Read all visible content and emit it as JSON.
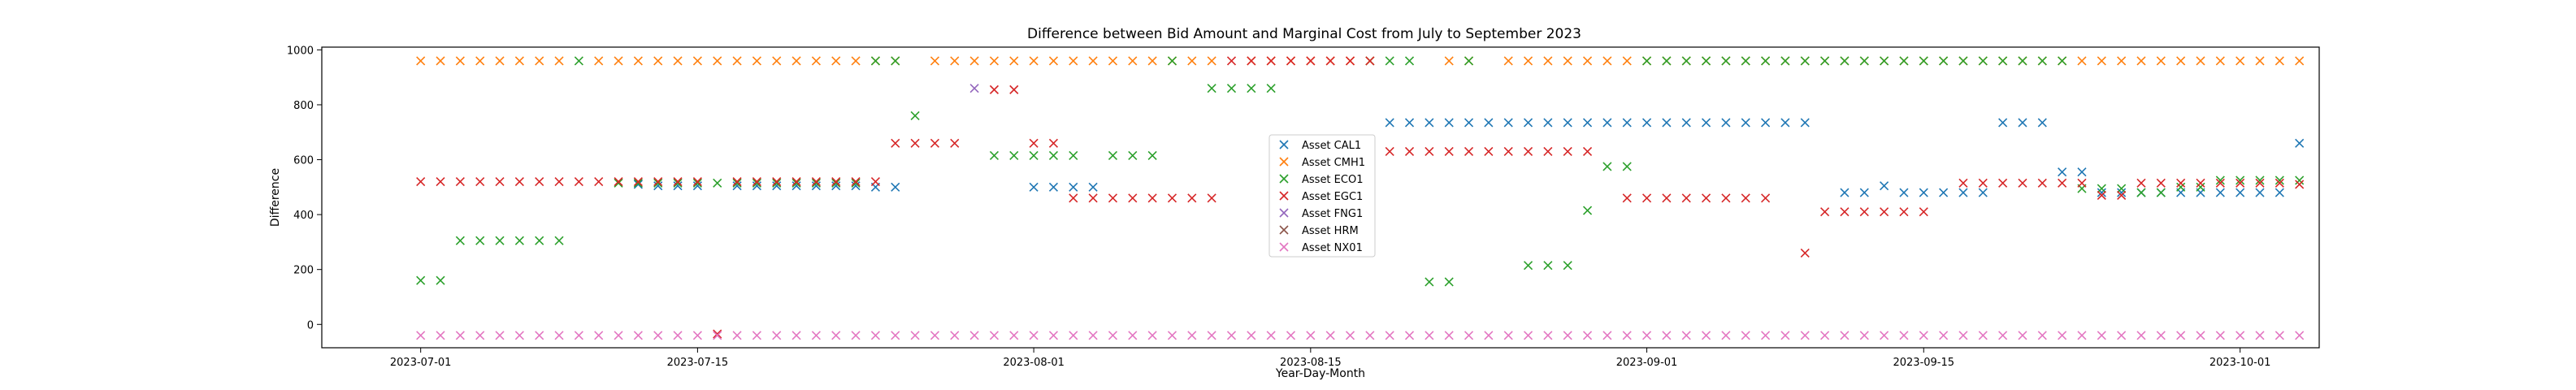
{
  "chart_data": {
    "type": "scatter",
    "title": "Difference between Bid Amount and Marginal Cost from July to September 2023",
    "xlabel": "Year-Day-Month",
    "ylabel": "Difference",
    "x_start": "2023-07-01",
    "x_end": "2023-09-30",
    "xlim": [
      "2023-06-26",
      "2023-10-05"
    ],
    "ylim": [
      -85,
      1010
    ],
    "xticks": [
      "2023-07-01",
      "2023-07-15",
      "2023-08-01",
      "2023-08-15",
      "2023-09-01",
      "2023-09-15",
      "2023-10-01"
    ],
    "yticks": [
      0,
      200,
      400,
      600,
      800,
      1000
    ],
    "marker": "x",
    "grid": false,
    "legend_position": "center",
    "series": [
      {
        "name": "Asset CAL1",
        "color": "#1f77b4",
        "values": [
          null,
          null,
          null,
          null,
          null,
          null,
          null,
          null,
          null,
          null,
          null,
          510,
          505,
          505,
          505,
          null,
          505,
          505,
          505,
          505,
          505,
          505,
          505,
          500,
          500,
          null,
          null,
          null,
          null,
          null,
          null,
          500,
          500,
          500,
          500,
          null,
          null,
          null,
          null,
          null,
          null,
          null,
          null,
          null,
          null,
          null,
          null,
          null,
          null,
          735,
          735,
          735,
          735,
          735,
          735,
          735,
          735,
          735,
          735,
          735,
          735,
          735,
          735,
          735,
          735,
          735,
          735,
          735,
          735,
          735,
          735,
          null,
          480,
          480,
          505,
          480,
          480,
          480,
          480,
          480,
          735,
          735,
          735,
          555,
          555,
          480,
          480,
          480,
          480,
          480,
          480,
          480,
          480,
          480,
          480,
          660
        ]
      },
      {
        "name": "Asset CMH1",
        "color": "#ff7f0e",
        "values": [
          960,
          960,
          960,
          960,
          960,
          960,
          960,
          960,
          null,
          960,
          960,
          960,
          960,
          960,
          960,
          960,
          960,
          960,
          960,
          960,
          960,
          960,
          960,
          960,
          960,
          null,
          960,
          960,
          960,
          960,
          960,
          960,
          960,
          960,
          960,
          960,
          960,
          960,
          960,
          960,
          960,
          null,
          960,
          960,
          960,
          960,
          960,
          960,
          960,
          null,
          null,
          null,
          960,
          960,
          null,
          960,
          960,
          960,
          960,
          960,
          960,
          960,
          960,
          960,
          960,
          960,
          960,
          960,
          960,
          960,
          960,
          960,
          960,
          960,
          960,
          960,
          960,
          960,
          960,
          960,
          960,
          960,
          960,
          960,
          960,
          960,
          960,
          960,
          960,
          960,
          960,
          960,
          960,
          960,
          960,
          960
        ]
      },
      {
        "name": "Asset ECO1",
        "color": "#2ca02c",
        "values": [
          160,
          160,
          305,
          305,
          305,
          305,
          305,
          305,
          960,
          null,
          515,
          515,
          515,
          515,
          515,
          515,
          515,
          515,
          515,
          515,
          515,
          515,
          515,
          960,
          960,
          760,
          null,
          null,
          null,
          615,
          615,
          615,
          615,
          615,
          null,
          615,
          615,
          615,
          960,
          null,
          860,
          860,
          860,
          860,
          null,
          null,
          null,
          null,
          960,
          960,
          960,
          155,
          155,
          960,
          null,
          null,
          215,
          215,
          215,
          415,
          575,
          575,
          960,
          960,
          960,
          960,
          960,
          960,
          960,
          960,
          960,
          960,
          960,
          960,
          960,
          960,
          960,
          960,
          960,
          960,
          960,
          960,
          960,
          960,
          495,
          495,
          495,
          480,
          480,
          500,
          500,
          525,
          525,
          525,
          525,
          525
        ]
      },
      {
        "name": "Asset EGC1",
        "color": "#d62728",
        "values": [
          520,
          520,
          520,
          520,
          520,
          520,
          520,
          520,
          520,
          520,
          520,
          520,
          520,
          520,
          520,
          -35,
          520,
          520,
          520,
          520,
          520,
          520,
          520,
          520,
          660,
          660,
          660,
          660,
          null,
          855,
          855,
          660,
          660,
          460,
          460,
          460,
          460,
          460,
          460,
          460,
          460,
          960,
          960,
          960,
          960,
          960,
          960,
          960,
          960,
          630,
          630,
          630,
          630,
          630,
          630,
          630,
          630,
          630,
          630,
          630,
          null,
          460,
          460,
          460,
          460,
          460,
          460,
          460,
          460,
          null,
          260,
          410,
          410,
          410,
          410,
          410,
          410,
          null,
          515,
          515,
          515,
          515,
          515,
          515,
          515,
          470,
          470,
          515,
          515,
          515,
          515,
          515,
          515,
          515,
          515,
          510
        ]
      },
      {
        "name": "Asset FNG1",
        "color": "#9467bd",
        "values": [
          null,
          null,
          null,
          null,
          null,
          null,
          null,
          null,
          null,
          null,
          null,
          null,
          null,
          null,
          null,
          null,
          null,
          null,
          null,
          null,
          null,
          null,
          null,
          null,
          null,
          null,
          null,
          null,
          860,
          null,
          null,
          null,
          null,
          null,
          null,
          null,
          null,
          null,
          null,
          null,
          null,
          null,
          null,
          null,
          null,
          null,
          null,
          null,
          null,
          null,
          null,
          null,
          null,
          null,
          null,
          null,
          null,
          null,
          null,
          null,
          null,
          null,
          null,
          null,
          null,
          null,
          null,
          null,
          null,
          null,
          null,
          null,
          null,
          null,
          null,
          null,
          null,
          null,
          null,
          null,
          null,
          null,
          null,
          null,
          null,
          null,
          null,
          null,
          null,
          null,
          null,
          null,
          null,
          null,
          null,
          null
        ]
      },
      {
        "name": "Asset HRM",
        "color": "#8c564b",
        "values": [
          null,
          null,
          null,
          null,
          null,
          null,
          null,
          null,
          null,
          null,
          null,
          null,
          null,
          null,
          null,
          null,
          null,
          null,
          null,
          null,
          null,
          null,
          null,
          null,
          null,
          null,
          null,
          null,
          null,
          null,
          null,
          null,
          null,
          null,
          null,
          null,
          null,
          null,
          null,
          null,
          null,
          null,
          null,
          null,
          null,
          null,
          null,
          null,
          null,
          null,
          null,
          null,
          null,
          null,
          null,
          null,
          null,
          null,
          null,
          null,
          null,
          null,
          null,
          null,
          null,
          null,
          null,
          null,
          null,
          null,
          null,
          null,
          null,
          null,
          null,
          null,
          null,
          null,
          null,
          null,
          null,
          null,
          null,
          null,
          null,
          null,
          null,
          null,
          null,
          null,
          null,
          null,
          null,
          null,
          null,
          null
        ]
      },
      {
        "name": "Asset NX01",
        "color": "#e377c2",
        "values": [
          -40,
          -40,
          -40,
          -40,
          -40,
          -40,
          -40,
          -40,
          -40,
          -40,
          -40,
          -40,
          -40,
          -40,
          -40,
          -40,
          -40,
          -40,
          -40,
          -40,
          -40,
          -40,
          -40,
          -40,
          -40,
          -40,
          -40,
          -40,
          -40,
          -40,
          -40,
          -40,
          -40,
          -40,
          -40,
          -40,
          -40,
          -40,
          -40,
          -40,
          -40,
          -40,
          -40,
          -40,
          -40,
          -40,
          -40,
          -40,
          -40,
          -40,
          -40,
          -40,
          -40,
          -40,
          -40,
          -40,
          -40,
          -40,
          -40,
          -40,
          -40,
          -40,
          -40,
          -40,
          -40,
          -40,
          -40,
          -40,
          -40,
          -40,
          -40,
          -40,
          -40,
          -40,
          -40,
          -40,
          -40,
          -40,
          -40,
          -40,
          -40,
          -40,
          -40,
          -40,
          -40,
          -40,
          -40,
          -40,
          -40,
          -40,
          -40,
          -40,
          -40,
          -40,
          -40,
          -40
        ]
      }
    ]
  }
}
